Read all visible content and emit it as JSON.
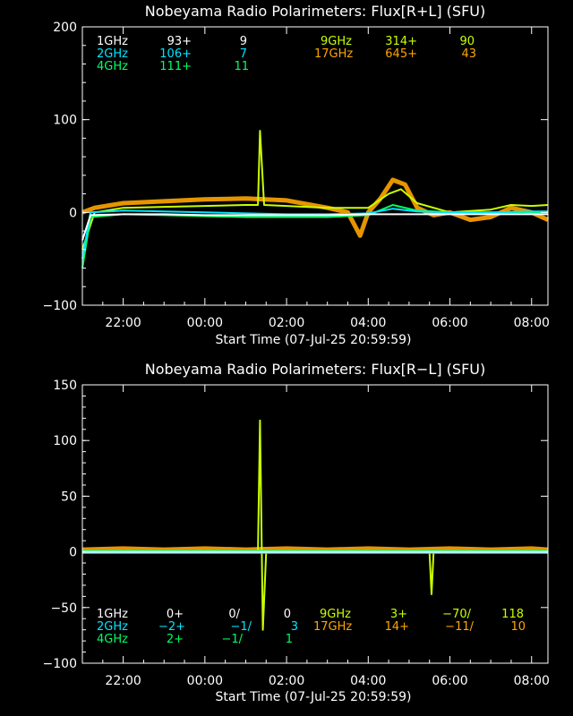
{
  "chart_data": [
    {
      "type": "line",
      "title": "Nobeyama Radio Polarimeters: Flux[R+L] (SFU)",
      "xlabel": "Start Time (07-Jul-25 20:59:59)",
      "ylabel": "",
      "x_ticks": [
        "22:00",
        "00:00",
        "02:00",
        "04:00",
        "06:00",
        "08:00"
      ],
      "y_ticks": [
        "200",
        "100",
        "0",
        "−100"
      ],
      "ylim": [
        -100,
        200
      ],
      "legend": {
        "rows": [
          {
            "band": "1GHz",
            "a": "93+",
            "b": "9",
            "color": "#ffffff"
          },
          {
            "band": "2GHz",
            "a": "106+",
            "b": "7",
            "color": "#00e5ff"
          },
          {
            "band": "4GHz",
            "a": "111+",
            "b": "11",
            "color": "#00ff66"
          },
          {
            "band": "9GHz",
            "a": "314+",
            "b": "90",
            "color": "#c8ff00"
          },
          {
            "band": "17GHz",
            "a": "645+",
            "b": "43",
            "color": "#ffa500"
          }
        ]
      },
      "series": [
        {
          "name": "17GHz",
          "color": "#ffa500",
          "x": [
            21.0,
            21.3,
            22.0,
            23.0,
            24.0,
            25.0,
            26.0,
            27.0,
            27.5,
            27.8,
            28.0,
            28.3,
            28.6,
            28.9,
            29.2,
            29.6,
            30.0,
            30.5,
            31.0,
            31.5,
            32.0,
            32.4
          ],
          "values": [
            0,
            5,
            10,
            12,
            14,
            15,
            13,
            5,
            0,
            -25,
            0,
            15,
            35,
            30,
            5,
            -3,
            0,
            -8,
            -5,
            5,
            0,
            -8
          ]
        },
        {
          "name": "9GHz",
          "color": "#c8ff00",
          "x": [
            21.0,
            21.3,
            22.0,
            23.0,
            24.0,
            25.0,
            25.3,
            25.35,
            25.45,
            26.0,
            27.0,
            28.0,
            28.5,
            28.8,
            29.2,
            30.0,
            31.0,
            31.5,
            32.0,
            32.4
          ],
          "values": [
            -40,
            0,
            5,
            6,
            7,
            8,
            8,
            88,
            8,
            7,
            5,
            5,
            20,
            25,
            10,
            0,
            3,
            8,
            7,
            8
          ]
        },
        {
          "name": "4GHz",
          "color": "#00ff66",
          "x": [
            21.0,
            21.2,
            22.0,
            23.0,
            24.0,
            25.0,
            26.0,
            27.0,
            28.0,
            28.6,
            29.2,
            30.0,
            31.0,
            32.0,
            32.4
          ],
          "values": [
            -60,
            -5,
            -2,
            -3,
            -4,
            -5,
            -5,
            -5,
            -3,
            8,
            2,
            0,
            0,
            0,
            0
          ]
        },
        {
          "name": "2GHz",
          "color": "#00e5ff",
          "x": [
            21.0,
            21.2,
            22.0,
            23.0,
            24.0,
            25.0,
            26.0,
            27.0,
            28.0,
            28.6,
            29.2,
            30.0,
            31.0,
            32.0,
            32.4
          ],
          "values": [
            -50,
            0,
            2,
            1,
            0,
            -1,
            -2,
            -2,
            -1,
            4,
            1,
            0,
            0,
            1,
            1
          ]
        },
        {
          "name": "1GHz",
          "color": "#ffffff",
          "x": [
            21.0,
            21.2,
            22.0,
            23.0,
            24.0,
            25.0,
            26.0,
            27.0,
            28.0,
            29.0,
            30.0,
            31.0,
            32.0,
            32.4
          ],
          "values": [
            -30,
            -3,
            -2,
            -2,
            -3,
            -3,
            -3,
            -3,
            -2,
            -2,
            -2,
            -2,
            -2,
            -2
          ]
        }
      ]
    },
    {
      "type": "line",
      "title": "Nobeyama Radio Polarimeters: Flux[R−L] (SFU)",
      "xlabel": "Start Time (07-Jul-25 20:59:59)",
      "ylabel": "",
      "x_ticks": [
        "22:00",
        "00:00",
        "02:00",
        "04:00",
        "06:00",
        "08:00"
      ],
      "y_ticks": [
        "150",
        "100",
        "50",
        "0",
        "−50",
        "−100"
      ],
      "ylim": [
        -100,
        150
      ],
      "legend": {
        "rows": [
          {
            "band": "1GHz",
            "a": "0+",
            "b": "0/",
            "c": "0",
            "color": "#ffffff"
          },
          {
            "band": "2GHz",
            "a": "−2+",
            "b": "−1/",
            "c": "3",
            "color": "#00e5ff"
          },
          {
            "band": "4GHz",
            "a": "2+",
            "b": "−1/",
            "c": "1",
            "color": "#00ff66"
          },
          {
            "band": "9GHz",
            "a": "3+",
            "b": "−70/",
            "c": "118",
            "color": "#c8ff00"
          },
          {
            "band": "17GHz",
            "a": "14+",
            "b": "−11/",
            "c": "10",
            "color": "#ffa500"
          }
        ]
      },
      "series": [
        {
          "name": "17GHz",
          "color": "#ffa500",
          "x": [
            21.0,
            22.0,
            23.0,
            24.0,
            25.0,
            26.0,
            27.0,
            28.0,
            29.0,
            30.0,
            31.0,
            32.0,
            32.4
          ],
          "values": [
            2,
            3,
            2,
            3,
            2,
            3,
            2,
            3,
            2,
            3,
            2,
            3,
            2
          ]
        },
        {
          "name": "9GHz",
          "color": "#c8ff00",
          "x": [
            21.0,
            22.0,
            23.0,
            24.0,
            25.0,
            25.3,
            25.35,
            25.42,
            25.5,
            26.0,
            27.0,
            28.0,
            29.0,
            29.5,
            29.55,
            29.6,
            30.0,
            31.0,
            32.0,
            32.4
          ],
          "values": [
            0,
            0,
            0,
            0,
            0,
            0,
            118,
            -70,
            0,
            0,
            0,
            0,
            0,
            0,
            -38,
            0,
            0,
            0,
            0,
            0
          ]
        },
        {
          "name": "4GHz",
          "color": "#00ff66",
          "x": [
            21.0,
            24.0,
            28.0,
            32.4
          ],
          "values": [
            1,
            1,
            1,
            1
          ]
        },
        {
          "name": "2GHz",
          "color": "#00e5ff",
          "x": [
            21.0,
            24.0,
            28.0,
            32.4
          ],
          "values": [
            -1,
            -1,
            -1,
            -1
          ]
        },
        {
          "name": "1GHz",
          "color": "#ffffff",
          "x": [
            21.0,
            24.0,
            28.0,
            32.4
          ],
          "values": [
            0,
            0,
            0,
            0
          ]
        }
      ]
    }
  ]
}
